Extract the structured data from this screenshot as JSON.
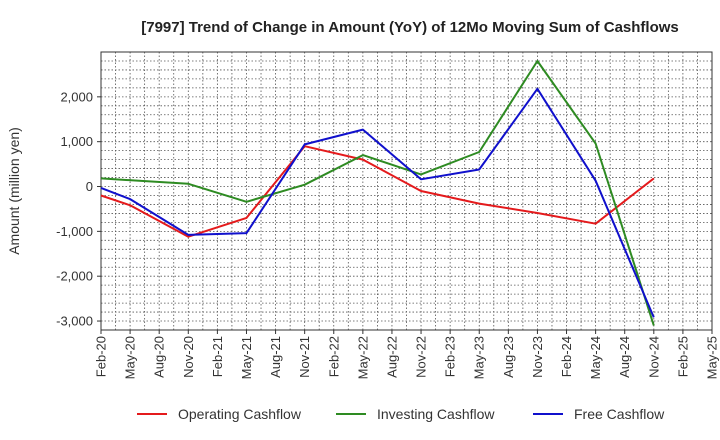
{
  "chart_data": {
    "type": "line",
    "title": "[7997]  Trend of Change in Amount (YoY) of 12Mo Moving Sum of Cashflows",
    "xlabel": "",
    "ylabel": "Amount (million yen)",
    "ylim": [
      -3200,
      3000
    ],
    "yticks": [
      -3000,
      -2000,
      -1000,
      0,
      1000,
      2000
    ],
    "ytick_labels": [
      "-3,000",
      "-2,000",
      "-1,000",
      "0",
      "1,000",
      "2,000"
    ],
    "categories": [
      "Feb-20",
      "May-20",
      "Aug-20",
      "Nov-20",
      "Feb-21",
      "May-21",
      "Aug-21",
      "Nov-21",
      "Feb-22",
      "May-22",
      "Aug-22",
      "Nov-22",
      "Feb-23",
      "May-23",
      "Aug-23",
      "Nov-23",
      "Feb-24",
      "May-24",
      "Aug-24",
      "Nov-24",
      "Feb-25",
      "May-25"
    ],
    "grid": true,
    "legend_position": "bottom",
    "series": [
      {
        "name": "Operating Cashflow",
        "color": "#e41a1c",
        "values": [
          -200,
          -420,
          null,
          -1120,
          null,
          -700,
          null,
          900,
          null,
          600,
          null,
          -100,
          null,
          -380,
          null,
          -590,
          null,
          -830,
          null,
          180,
          null,
          null
        ]
      },
      {
        "name": "Investing Cashflow",
        "color": "#2e8b22",
        "values": [
          180,
          null,
          null,
          60,
          null,
          -340,
          null,
          40,
          null,
          700,
          null,
          270,
          null,
          770,
          null,
          2800,
          null,
          960,
          null,
          -3100,
          null,
          null
        ]
      },
      {
        "name": "Free Cashflow",
        "color": "#1010cc",
        "values": [
          -30,
          -280,
          null,
          -1080,
          null,
          -1040,
          null,
          940,
          null,
          1270,
          null,
          160,
          null,
          380,
          null,
          2180,
          null,
          130,
          null,
          -2920,
          null,
          null
        ]
      }
    ]
  }
}
